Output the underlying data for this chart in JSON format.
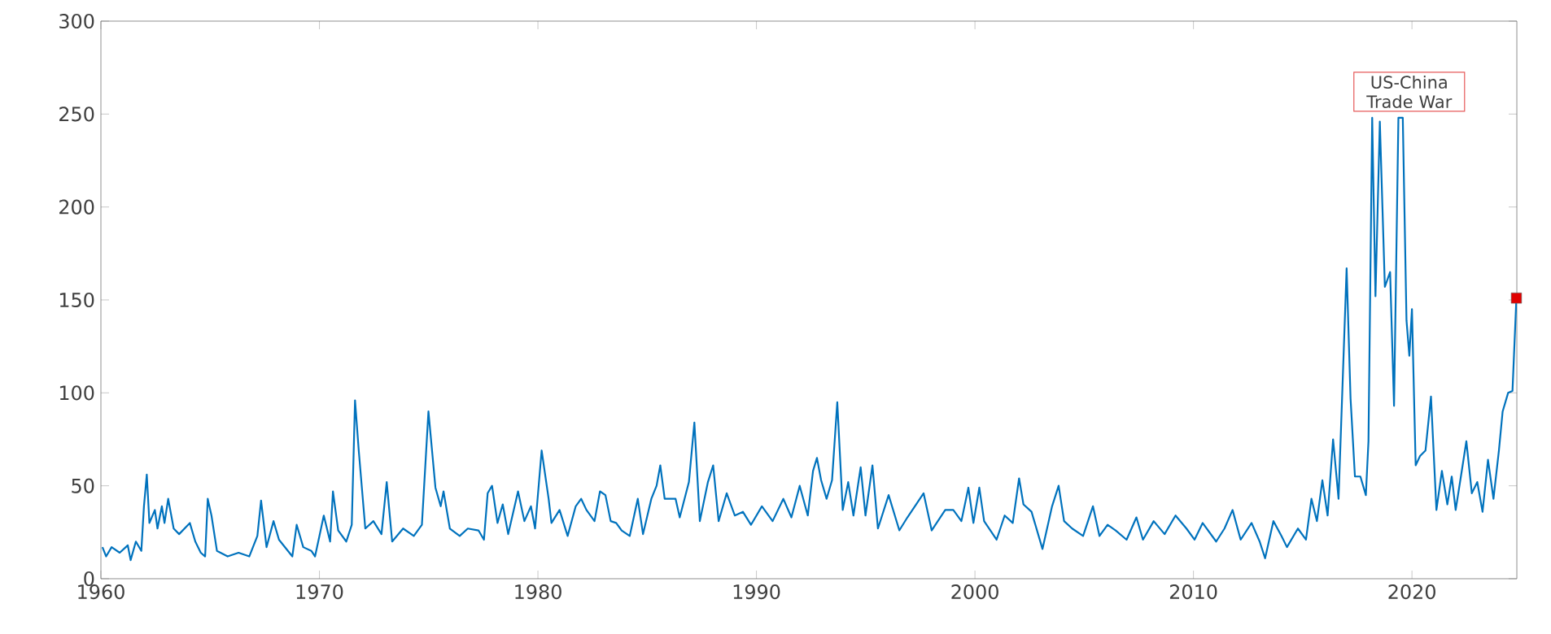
{
  "chart_data": {
    "type": "line",
    "xlim": [
      1960,
      2024.8
    ],
    "ylim": [
      0,
      300
    ],
    "xticks": [
      1960,
      1970,
      1980,
      1990,
      2000,
      2010,
      2020
    ],
    "yticks": [
      0,
      50,
      100,
      150,
      200,
      250,
      300
    ],
    "grid": false,
    "marker": "none",
    "line_style": "solid",
    "annotations": [
      "US-China Trade War"
    ],
    "series": [
      {
        "color": "#0072bd",
        "x": [
          1960.07,
          1960.24,
          1960.49,
          1960.86,
          1961.23,
          1961.36,
          1961.6,
          1961.85,
          1961.97,
          1962.1,
          1962.22,
          1962.47,
          1962.59,
          1962.79,
          1962.91,
          1963.08,
          1963.33,
          1963.58,
          1964.07,
          1964.32,
          1964.57,
          1964.77,
          1964.89,
          1965.06,
          1965.31,
          1965.8,
          1966.3,
          1966.79,
          1967.16,
          1967.33,
          1967.58,
          1967.9,
          1968.15,
          1968.76,
          1968.96,
          1969.26,
          1969.63,
          1969.8,
          1970.0,
          1970.2,
          1970.49,
          1970.62,
          1970.86,
          1971.23,
          1971.48,
          1971.63,
          1971.8,
          1972.1,
          1972.47,
          1972.84,
          1973.08,
          1973.33,
          1973.83,
          1974.32,
          1974.69,
          1974.99,
          1975.31,
          1975.55,
          1975.68,
          1975.97,
          1976.42,
          1976.79,
          1977.28,
          1977.53,
          1977.7,
          1977.9,
          1978.15,
          1978.39,
          1978.64,
          1979.09,
          1979.38,
          1979.68,
          1979.87,
          1980.17,
          1980.49,
          1980.62,
          1980.99,
          1981.36,
          1981.73,
          1981.98,
          1982.22,
          1982.59,
          1982.84,
          1983.09,
          1983.33,
          1983.58,
          1983.83,
          1984.2,
          1984.57,
          1984.81,
          1985.19,
          1985.43,
          1985.6,
          1985.8,
          1986.3,
          1986.49,
          1986.91,
          1987.16,
          1987.41,
          1987.78,
          1988.02,
          1988.27,
          1988.64,
          1989.01,
          1989.38,
          1989.75,
          1990.25,
          1990.74,
          1991.23,
          1991.6,
          1991.98,
          1992.35,
          1992.59,
          1992.77,
          1992.96,
          1993.21,
          1993.46,
          1993.7,
          1993.95,
          1994.2,
          1994.44,
          1994.77,
          1994.99,
          1995.31,
          1995.56,
          1996.05,
          1996.54,
          1996.91,
          1997.65,
          1998.02,
          1998.64,
          1999.01,
          1999.38,
          1999.7,
          1999.93,
          2000.2,
          2000.42,
          2000.99,
          2001.36,
          2001.73,
          2002.02,
          2002.22,
          2002.59,
          2003.09,
          2003.53,
          2003.83,
          2004.08,
          2004.45,
          2004.95,
          2005.4,
          2005.7,
          2006.07,
          2006.44,
          2006.94,
          2007.39,
          2007.69,
          2008.18,
          2008.68,
          2009.18,
          2009.68,
          2010.05,
          2010.42,
          2011.04,
          2011.42,
          2011.79,
          2012.16,
          2012.66,
          2013.03,
          2013.28,
          2013.66,
          2014.03,
          2014.28,
          2014.78,
          2015.15,
          2015.4,
          2015.65,
          2015.9,
          2016.14,
          2016.39,
          2016.64,
          2016.84,
          2017.01,
          2017.19,
          2017.39,
          2017.64,
          2017.89,
          2018.01,
          2018.18,
          2018.33,
          2018.53,
          2018.76,
          2019.0,
          2019.18,
          2019.38,
          2019.58,
          2019.75,
          2019.88,
          2020.0,
          2020.17,
          2020.37,
          2020.62,
          2020.87,
          2021.12,
          2021.37,
          2021.62,
          2021.82,
          2022.0,
          2022.24,
          2022.49,
          2022.74,
          2022.99,
          2023.23,
          2023.48,
          2023.73,
          2023.98,
          2024.15,
          2024.4,
          2024.6,
          2024.78
        ],
        "values": [
          17,
          12,
          17,
          14,
          18,
          10,
          20,
          15,
          39,
          56,
          30,
          37,
          27,
          39,
          30,
          43,
          27,
          24,
          30,
          20,
          14,
          12,
          43,
          34,
          15,
          12,
          14,
          12,
          23,
          42,
          17,
          31,
          21,
          12,
          29,
          17,
          15,
          12,
          23,
          34,
          20,
          47,
          26,
          20,
          29,
          96,
          69,
          27,
          31,
          24,
          52,
          20,
          27,
          23,
          29,
          90,
          49,
          39,
          47,
          27,
          23,
          27,
          26,
          21,
          46,
          50,
          30,
          40,
          24,
          47,
          31,
          39,
          27,
          69,
          43,
          30,
          37,
          23,
          39,
          43,
          37,
          31,
          47,
          45,
          31,
          30,
          26,
          23,
          43,
          24,
          43,
          50,
          61,
          43,
          43,
          33,
          52,
          84,
          31,
          52,
          61,
          31,
          46,
          34,
          36,
          29,
          39,
          31,
          43,
          33,
          50,
          34,
          58,
          65,
          53,
          43,
          53,
          95,
          37,
          52,
          34,
          60,
          34,
          61,
          27,
          45,
          26,
          33,
          46,
          26,
          37,
          37,
          31,
          49,
          30,
          49,
          31,
          21,
          34,
          30,
          54,
          40,
          36,
          16,
          39,
          50,
          31,
          27,
          23,
          39,
          23,
          29,
          26,
          21,
          33,
          21,
          31,
          24,
          34,
          27,
          21,
          30,
          20,
          27,
          37,
          21,
          30,
          20,
          11,
          31,
          23,
          17,
          27,
          21,
          43,
          31,
          53,
          34,
          75,
          43,
          110,
          167,
          97,
          55,
          55,
          45,
          74,
          248,
          152,
          246,
          157,
          165,
          93,
          248,
          248,
          139,
          120,
          145,
          61,
          66,
          69,
          98,
          37,
          58,
          40,
          55,
          37,
          55,
          74,
          46,
          52,
          36,
          64,
          43,
          69,
          90,
          100,
          101,
          151
        ]
      },
      {
        "type": "scatter",
        "marker": "square",
        "color": "#e00000",
        "x": [
          2024.78
        ],
        "values": [
          151
        ]
      }
    ]
  }
}
